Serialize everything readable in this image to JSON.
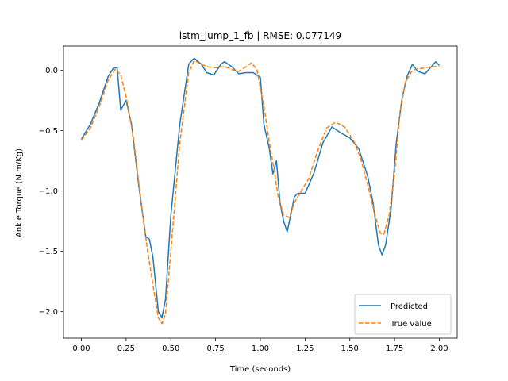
{
  "chart_data": {
    "type": "line",
    "title": "lstm_jump_1_fb | RMSE: 0.077149",
    "xlabel": "Time (seconds)",
    "ylabel": "Ankle Torque (N.m/Kg)",
    "xlim": [
      -0.1,
      2.1
    ],
    "ylim": [
      -2.22,
      0.2
    ],
    "xticks": [
      0.0,
      0.25,
      0.5,
      0.75,
      1.0,
      1.25,
      1.5,
      1.75,
      2.0
    ],
    "xtick_labels": [
      "0.00",
      "0.25",
      "0.50",
      "0.75",
      "1.00",
      "1.25",
      "1.50",
      "1.75",
      "2.00"
    ],
    "yticks": [
      0.0,
      -0.5,
      -1.0,
      -1.5,
      -2.0
    ],
    "ytick_labels": [
      "0.0",
      "−0.5",
      "−1.0",
      "−1.5",
      "−2.0"
    ],
    "grid": false,
    "legend_position": "lower-right",
    "series": [
      {
        "name": "Predicted",
        "color": "#1f77b4",
        "style": "solid",
        "points": [
          [
            0.0,
            -0.57
          ],
          [
            0.05,
            -0.45
          ],
          [
            0.1,
            -0.27
          ],
          [
            0.15,
            -0.05
          ],
          [
            0.18,
            0.02
          ],
          [
            0.2,
            0.02
          ],
          [
            0.22,
            -0.33
          ],
          [
            0.25,
            -0.25
          ],
          [
            0.28,
            -0.45
          ],
          [
            0.32,
            -0.95
          ],
          [
            0.36,
            -1.38
          ],
          [
            0.38,
            -1.4
          ],
          [
            0.4,
            -1.55
          ],
          [
            0.43,
            -2.0
          ],
          [
            0.45,
            -2.05
          ],
          [
            0.47,
            -1.9
          ],
          [
            0.5,
            -1.2
          ],
          [
            0.55,
            -0.45
          ],
          [
            0.6,
            0.05
          ],
          [
            0.63,
            0.1
          ],
          [
            0.67,
            0.05
          ],
          [
            0.7,
            -0.02
          ],
          [
            0.74,
            -0.04
          ],
          [
            0.78,
            0.05
          ],
          [
            0.8,
            0.07
          ],
          [
            0.84,
            0.03
          ],
          [
            0.88,
            -0.03
          ],
          [
            0.92,
            -0.02
          ],
          [
            0.96,
            -0.02
          ],
          [
            1.0,
            -0.06
          ],
          [
            1.02,
            -0.45
          ],
          [
            1.05,
            -0.65
          ],
          [
            1.07,
            -0.86
          ],
          [
            1.09,
            -0.75
          ],
          [
            1.11,
            -1.1
          ],
          [
            1.13,
            -1.25
          ],
          [
            1.15,
            -1.34
          ],
          [
            1.17,
            -1.2
          ],
          [
            1.19,
            -1.05
          ],
          [
            1.21,
            -1.02
          ],
          [
            1.25,
            -1.02
          ],
          [
            1.3,
            -0.85
          ],
          [
            1.35,
            -0.6
          ],
          [
            1.4,
            -0.47
          ],
          [
            1.45,
            -0.52
          ],
          [
            1.5,
            -0.56
          ],
          [
            1.55,
            -0.65
          ],
          [
            1.6,
            -0.88
          ],
          [
            1.63,
            -1.1
          ],
          [
            1.66,
            -1.45
          ],
          [
            1.68,
            -1.53
          ],
          [
            1.7,
            -1.45
          ],
          [
            1.73,
            -1.15
          ],
          [
            1.76,
            -0.6
          ],
          [
            1.79,
            -0.25
          ],
          [
            1.82,
            -0.05
          ],
          [
            1.85,
            0.05
          ],
          [
            1.88,
            -0.01
          ],
          [
            1.92,
            -0.03
          ],
          [
            1.95,
            0.02
          ],
          [
            1.98,
            0.07
          ],
          [
            2.0,
            0.04
          ]
        ]
      },
      {
        "name": "True value",
        "color": "#ff7f0e",
        "style": "dashed",
        "points": [
          [
            0.0,
            -0.58
          ],
          [
            0.05,
            -0.48
          ],
          [
            0.1,
            -0.3
          ],
          [
            0.15,
            -0.08
          ],
          [
            0.19,
            0.01
          ],
          [
            0.22,
            -0.04
          ],
          [
            0.25,
            -0.22
          ],
          [
            0.29,
            -0.55
          ],
          [
            0.33,
            -1.05
          ],
          [
            0.37,
            -1.5
          ],
          [
            0.4,
            -1.78
          ],
          [
            0.43,
            -2.05
          ],
          [
            0.45,
            -2.1
          ],
          [
            0.47,
            -2.02
          ],
          [
            0.5,
            -1.5
          ],
          [
            0.55,
            -0.6
          ],
          [
            0.6,
            -0.02
          ],
          [
            0.63,
            0.08
          ],
          [
            0.67,
            0.05
          ],
          [
            0.7,
            0.03
          ],
          [
            0.75,
            0.02
          ],
          [
            0.8,
            0.03
          ],
          [
            0.85,
            0.0
          ],
          [
            0.88,
            -0.01
          ],
          [
            0.92,
            0.03
          ],
          [
            0.95,
            0.06
          ],
          [
            0.98,
            0.01
          ],
          [
            1.02,
            -0.3
          ],
          [
            1.05,
            -0.6
          ],
          [
            1.08,
            -0.85
          ],
          [
            1.1,
            -1.05
          ],
          [
            1.13,
            -1.2
          ],
          [
            1.16,
            -1.22
          ],
          [
            1.19,
            -1.1
          ],
          [
            1.22,
            -1.02
          ],
          [
            1.27,
            -0.9
          ],
          [
            1.32,
            -0.67
          ],
          [
            1.37,
            -0.48
          ],
          [
            1.42,
            -0.43
          ],
          [
            1.47,
            -0.47
          ],
          [
            1.52,
            -0.58
          ],
          [
            1.56,
            -0.73
          ],
          [
            1.6,
            -0.95
          ],
          [
            1.64,
            -1.2
          ],
          [
            1.67,
            -1.35
          ],
          [
            1.69,
            -1.36
          ],
          [
            1.72,
            -1.2
          ],
          [
            1.75,
            -0.85
          ],
          [
            1.78,
            -0.35
          ],
          [
            1.81,
            -0.1
          ],
          [
            1.85,
            0.0
          ],
          [
            1.88,
            0.01
          ],
          [
            1.92,
            0.02
          ],
          [
            1.96,
            0.03
          ],
          [
            2.0,
            0.03
          ]
        ]
      }
    ]
  }
}
